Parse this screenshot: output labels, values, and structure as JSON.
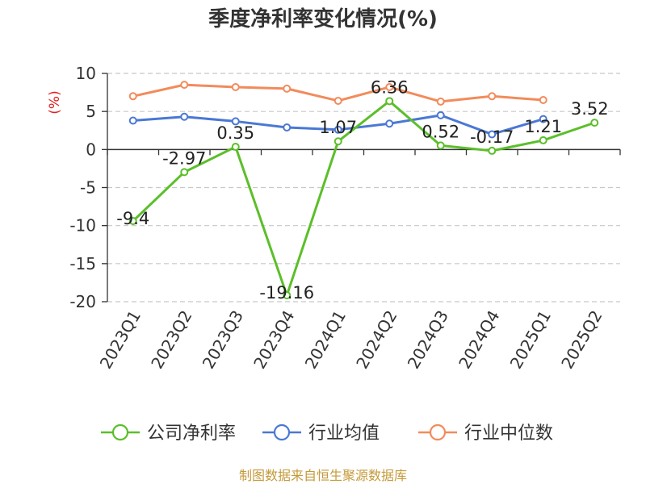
{
  "chart_data": {
    "type": "line",
    "title": "季度净利率变化情况(%)",
    "ylabel": "(%)",
    "xlabel": "",
    "ylim": [
      -20,
      10
    ],
    "yticks": [
      10,
      5,
      0,
      -5,
      -10,
      -15,
      -20
    ],
    "categories": [
      "2023Q1",
      "2023Q2",
      "2023Q3",
      "2023Q4",
      "2024Q1",
      "2024Q2",
      "2024Q3",
      "2024Q4",
      "2025Q1",
      "2025Q2"
    ],
    "grid": true,
    "legend_position": "bottom",
    "series": [
      {
        "name": "公司净利率",
        "color": "#5bbf2a",
        "values": [
          -9.4,
          -2.97,
          0.35,
          -19.16,
          1.07,
          6.36,
          0.52,
          -0.17,
          1.21,
          3.52
        ],
        "labels": [
          "-9.4",
          "-2.97",
          "0.35",
          "-19.16",
          "1.07",
          "6.36",
          "0.52",
          "-0.17",
          "1.21",
          "3.52"
        ]
      },
      {
        "name": "行业均值",
        "color": "#4a78d4",
        "values": [
          3.8,
          4.3,
          3.7,
          2.9,
          2.6,
          3.4,
          4.5,
          2.0,
          4.0,
          null
        ]
      },
      {
        "name": "行业中位数",
        "color": "#f28b5b",
        "values": [
          7.0,
          8.5,
          8.2,
          8.0,
          6.4,
          8.2,
          6.3,
          7.0,
          6.5,
          null
        ]
      }
    ]
  },
  "source_text": "制图数据来自恒生聚源数据库"
}
